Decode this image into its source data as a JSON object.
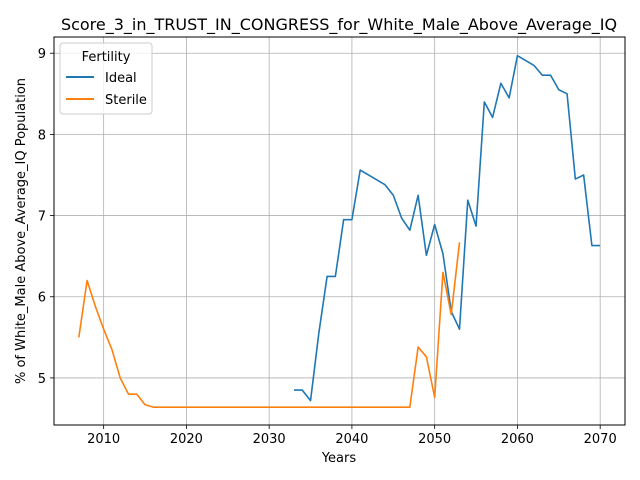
{
  "chart_data": {
    "type": "line",
    "title": "Score_3_in_TRUST_IN_CONGRESS_for_White_Male_Above_Average_IQ",
    "xlabel": "Years",
    "ylabel": "% of White_Male Above_Average_IQ Population",
    "xlim": [
      2004,
      2073
    ],
    "ylim": [
      4.42,
      9.2
    ],
    "xticks": [
      2010,
      2020,
      2030,
      2040,
      2050,
      2060,
      2070
    ],
    "yticks": [
      5,
      6,
      7,
      8,
      9
    ],
    "grid": true,
    "legend": {
      "title": "Fertility",
      "placement": "top-left"
    },
    "series": [
      {
        "name": "Ideal",
        "color": "#1f77b4",
        "points": [
          [
            2033,
            4.85
          ],
          [
            2034,
            4.85
          ],
          [
            2035,
            4.72
          ],
          [
            2036,
            5.55
          ],
          [
            2037,
            6.25
          ],
          [
            2038,
            6.25
          ],
          [
            2039,
            6.95
          ],
          [
            2040,
            6.95
          ],
          [
            2041,
            7.56
          ],
          [
            2042,
            7.5
          ],
          [
            2043,
            7.44
          ],
          [
            2044,
            7.38
          ],
          [
            2045,
            7.25
          ],
          [
            2046,
            6.97
          ],
          [
            2047,
            6.82
          ],
          [
            2048,
            7.25
          ],
          [
            2049,
            6.51
          ],
          [
            2050,
            6.89
          ],
          [
            2051,
            6.53
          ],
          [
            2052,
            5.82
          ],
          [
            2053,
            5.6
          ],
          [
            2054,
            7.19
          ],
          [
            2055,
            6.87
          ],
          [
            2056,
            8.4
          ],
          [
            2057,
            8.21
          ],
          [
            2058,
            8.63
          ],
          [
            2059,
            8.45
          ],
          [
            2060,
            8.97
          ],
          [
            2061,
            8.91
          ],
          [
            2062,
            8.85
          ],
          [
            2063,
            8.73
          ],
          [
            2064,
            8.73
          ],
          [
            2065,
            8.55
          ],
          [
            2066,
            8.5
          ],
          [
            2067,
            7.45
          ],
          [
            2068,
            7.5
          ],
          [
            2069,
            6.63
          ],
          [
            2070,
            6.63
          ]
        ]
      },
      {
        "name": "Sterile",
        "color": "#ff7f0e",
        "points": [
          [
            2007,
            5.5
          ],
          [
            2008,
            6.2
          ],
          [
            2009,
            5.88
          ],
          [
            2010,
            5.6
          ],
          [
            2011,
            5.35
          ],
          [
            2012,
            5.0
          ],
          [
            2013,
            4.8
          ],
          [
            2014,
            4.8
          ],
          [
            2015,
            4.67
          ],
          [
            2016,
            4.64
          ],
          [
            2017,
            4.64
          ],
          [
            2018,
            4.64
          ],
          [
            2019,
            4.64
          ],
          [
            2020,
            4.64
          ],
          [
            2021,
            4.64
          ],
          [
            2022,
            4.64
          ],
          [
            2023,
            4.64
          ],
          [
            2024,
            4.64
          ],
          [
            2025,
            4.64
          ],
          [
            2026,
            4.64
          ],
          [
            2027,
            4.64
          ],
          [
            2028,
            4.64
          ],
          [
            2029,
            4.64
          ],
          [
            2030,
            4.64
          ],
          [
            2031,
            4.64
          ],
          [
            2032,
            4.64
          ],
          [
            2033,
            4.64
          ],
          [
            2034,
            4.64
          ],
          [
            2035,
            4.64
          ],
          [
            2036,
            4.64
          ],
          [
            2037,
            4.64
          ],
          [
            2038,
            4.64
          ],
          [
            2039,
            4.64
          ],
          [
            2040,
            4.64
          ],
          [
            2041,
            4.64
          ],
          [
            2042,
            4.64
          ],
          [
            2043,
            4.64
          ],
          [
            2044,
            4.64
          ],
          [
            2045,
            4.64
          ],
          [
            2046,
            4.64
          ],
          [
            2047,
            4.64
          ],
          [
            2048,
            5.38
          ],
          [
            2049,
            5.26
          ],
          [
            2050,
            4.76
          ],
          [
            2051,
            6.3
          ],
          [
            2052,
            5.78
          ],
          [
            2053,
            6.67
          ]
        ]
      }
    ]
  }
}
